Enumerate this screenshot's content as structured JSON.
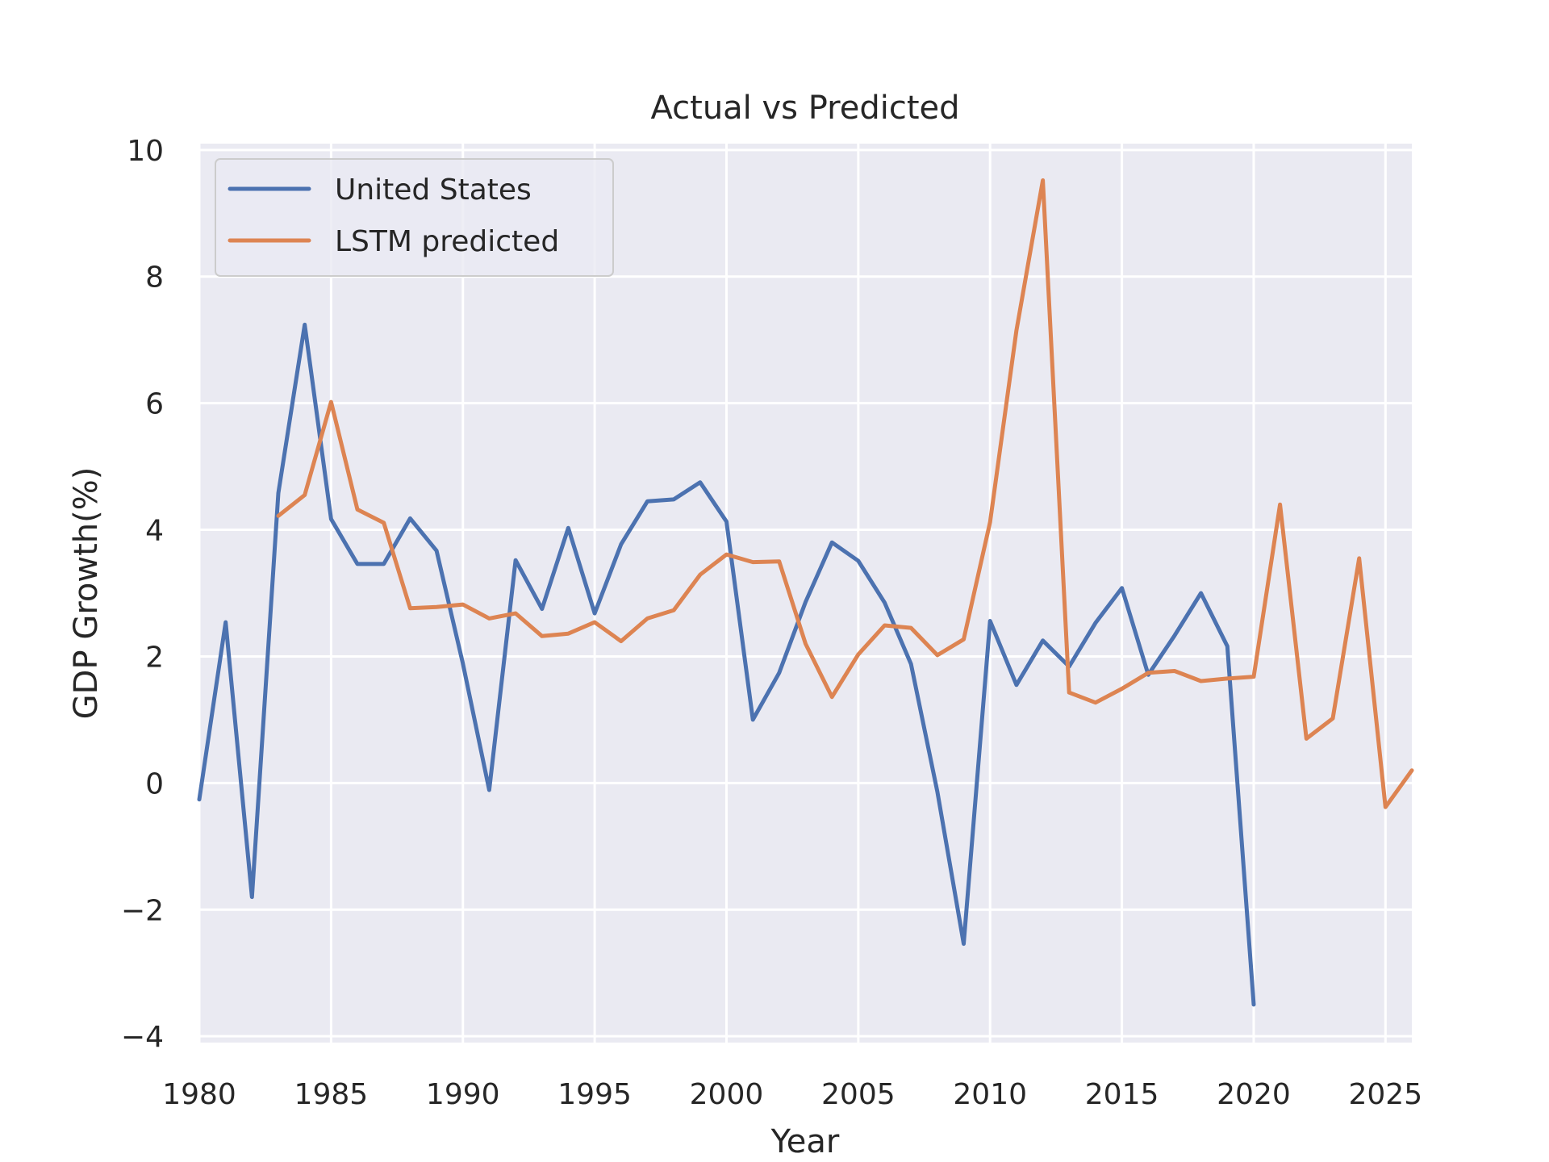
{
  "chart_data": {
    "type": "line",
    "title": "Actual vs Predicted",
    "xlabel": "Year",
    "ylabel": "GDP Growth(%)",
    "xlim": [
      1980,
      2026
    ],
    "ylim": [
      -4.1,
      10.1
    ],
    "xticks": [
      1980,
      1985,
      1990,
      1995,
      2000,
      2005,
      2010,
      2015,
      2020,
      2025
    ],
    "yticks": [
      -4,
      -2,
      0,
      2,
      4,
      6,
      8,
      10
    ],
    "ytick_labels": [
      "−4",
      "−2",
      "0",
      "2",
      "4",
      "6",
      "8",
      "10"
    ],
    "grid": true,
    "legend_position": "upper-left",
    "series": [
      {
        "name": "United States",
        "color": "#4c72b0",
        "x": [
          1980,
          1981,
          1982,
          1983,
          1984,
          1985,
          1986,
          1987,
          1988,
          1989,
          1990,
          1991,
          1992,
          1993,
          1994,
          1995,
          1996,
          1997,
          1998,
          1999,
          2000,
          2001,
          2002,
          2003,
          2004,
          2005,
          2006,
          2007,
          2008,
          2009,
          2010,
          2011,
          2012,
          2013,
          2014,
          2015,
          2016,
          2017,
          2018,
          2019,
          2020
        ],
        "values": [
          -0.26,
          2.54,
          -1.8,
          4.58,
          7.24,
          4.17,
          3.46,
          3.46,
          4.18,
          3.67,
          1.89,
          -0.11,
          3.52,
          2.75,
          4.03,
          2.68,
          3.77,
          4.45,
          4.48,
          4.75,
          4.13,
          1.0,
          1.74,
          2.86,
          3.8,
          3.51,
          2.85,
          1.88,
          -0.14,
          -2.54,
          2.56,
          1.55,
          2.25,
          1.84,
          2.53,
          3.08,
          1.71,
          2.33,
          3.0,
          2.16,
          -3.5
        ]
      },
      {
        "name": "LSTM predicted",
        "color": "#dd8452",
        "x": [
          1983,
          1984,
          1985,
          1986,
          1987,
          1988,
          1989,
          1990,
          1991,
          1992,
          1993,
          1994,
          1995,
          1996,
          1997,
          1998,
          1999,
          2000,
          2001,
          2002,
          2003,
          2004,
          2005,
          2006,
          2007,
          2008,
          2009,
          2010,
          2011,
          2012,
          2013,
          2014,
          2015,
          2016,
          2017,
          2018,
          2019,
          2020,
          2021,
          2022,
          2023,
          2024,
          2025,
          2026
        ],
        "values": [
          4.22,
          4.55,
          6.02,
          4.32,
          4.11,
          2.76,
          2.78,
          2.82,
          2.6,
          2.68,
          2.32,
          2.36,
          2.54,
          2.24,
          2.6,
          2.73,
          3.29,
          3.61,
          3.49,
          3.5,
          2.2,
          1.36,
          2.03,
          2.49,
          2.45,
          2.02,
          2.27,
          4.12,
          7.15,
          9.52,
          1.43,
          1.27,
          1.49,
          1.74,
          1.77,
          1.61,
          1.65,
          1.68,
          4.4,
          0.7,
          1.02,
          3.55,
          -0.38,
          0.2
        ]
      }
    ]
  }
}
